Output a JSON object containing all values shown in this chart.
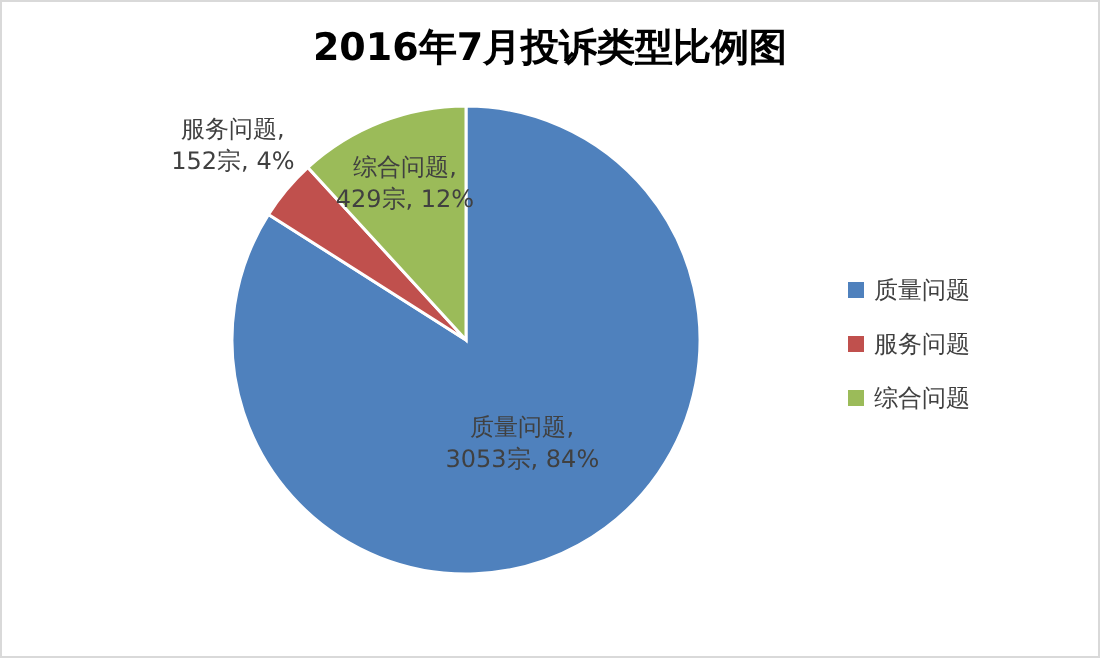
{
  "chart_data": {
    "type": "pie",
    "title": "2016年7月投诉类型比例图",
    "categories": [
      "质量问题",
      "服务问题",
      "综合问题"
    ],
    "values": [
      3053,
      152,
      429
    ],
    "colors": [
      "#4f81bd",
      "#c0504d",
      "#9bbb59"
    ],
    "value_labels": [
      "质量问题, 3053宗, 84%",
      "服务问题, 152宗, 4%",
      "综合问题, 429宗, 12%"
    ],
    "legend": "right"
  }
}
